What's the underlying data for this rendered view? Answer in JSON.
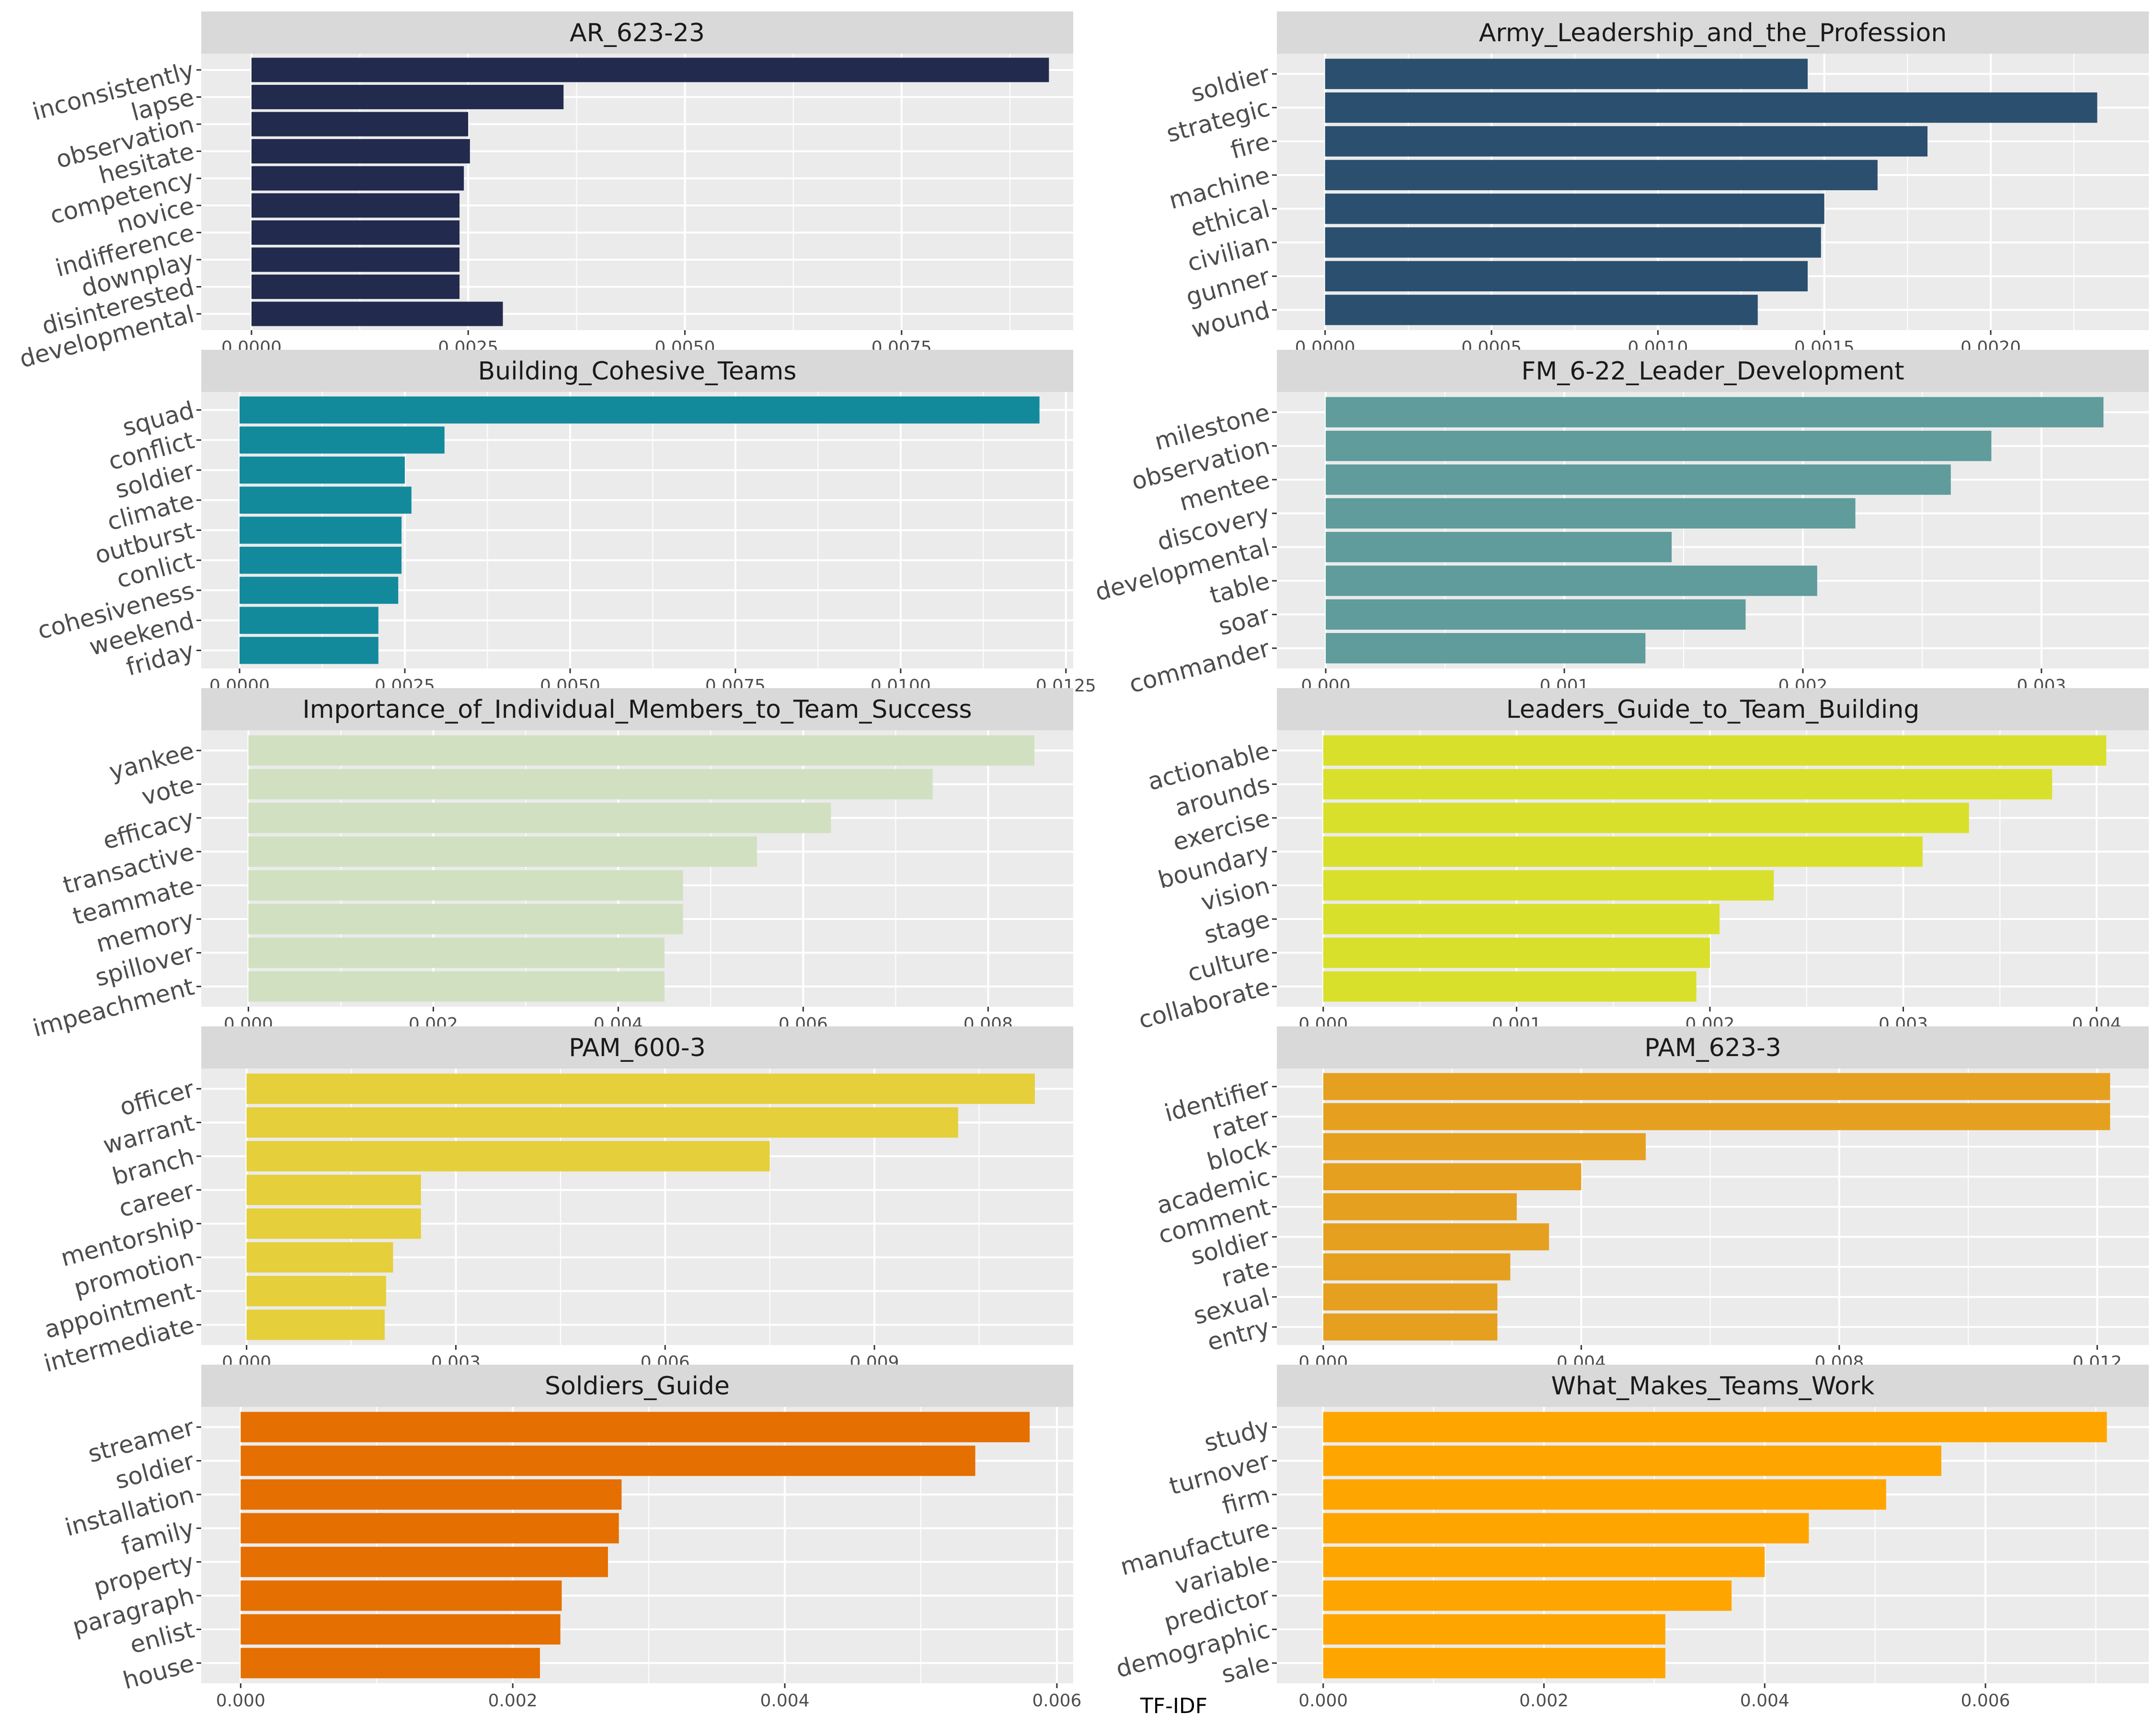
{
  "chart_data": {
    "type": "bar",
    "orientation": "horizontal",
    "layout": "facet-grid-5x2",
    "xlabel": "TF-IDF",
    "ylabel": "",
    "grid": true,
    "legend": "none",
    "panels": [
      {
        "title": "AR_623-23",
        "color": "#222b4e",
        "xlim": [
          -0.00058,
          0.00948
        ],
        "ticks": [
          0.0,
          0.0025,
          0.005,
          0.0075
        ],
        "tick_labels": [
          "0.0000",
          "0.0025",
          "0.0050",
          "0.0075"
        ],
        "categories": [
          "inconsistently",
          "lapse",
          "observation",
          "hesitate",
          "competency",
          "novice",
          "indifference",
          "downplay",
          "disinterested",
          "developmental"
        ],
        "values": [
          0.0092,
          0.0036,
          0.0025,
          0.00252,
          0.00245,
          0.0024,
          0.0024,
          0.0024,
          0.0024,
          0.0029
        ]
      },
      {
        "title": "Army_Leadership_and_the_Profession",
        "color": "#2b4f6f",
        "xlim": [
          -0.000145,
          0.002475
        ],
        "ticks": [
          0.0,
          0.0005,
          0.001,
          0.0015,
          0.002
        ],
        "tick_labels": [
          "0.0000",
          "0.0005",
          "0.0010",
          "0.0015",
          "0.0020"
        ],
        "categories": [
          "soldier",
          "strategic",
          "fire",
          "machine",
          "ethical",
          "civilian",
          "gunner",
          "wound"
        ],
        "values": [
          0.00145,
          0.00232,
          0.00181,
          0.00166,
          0.0015,
          0.00149,
          0.00145,
          0.0013
        ]
      },
      {
        "title": "Building_Cohesive_Teams",
        "color": "#138a9c",
        "xlim": [
          -0.00058,
          0.01261
        ],
        "ticks": [
          0.0,
          0.0025,
          0.005,
          0.0075,
          0.01,
          0.0125
        ],
        "tick_labels": [
          "0.0000",
          "0.0025",
          "0.0050",
          "0.0075",
          "0.0100",
          "0.0125"
        ],
        "categories": [
          "squad",
          "conflict",
          "soldier",
          "climate",
          "outburst",
          "conlict",
          "cohesiveness",
          "weekend",
          "friday"
        ],
        "values": [
          0.0121,
          0.0031,
          0.0025,
          0.0026,
          0.00245,
          0.00245,
          0.0024,
          0.0021,
          0.0021
        ]
      },
      {
        "title": "FM_6-22_Leader_Development",
        "color": "#5f9c9b",
        "xlim": [
          -0.000205,
          0.00345
        ],
        "ticks": [
          0.0,
          0.001,
          0.002,
          0.003
        ],
        "tick_labels": [
          "0.000",
          "0.001",
          "0.002",
          "0.003"
        ],
        "categories": [
          "milestone",
          "observation",
          "mentee",
          "discovery",
          "developmental",
          "table",
          "soar",
          "commander"
        ],
        "values": [
          0.00326,
          0.00279,
          0.00262,
          0.00222,
          0.00145,
          0.00206,
          0.00176,
          0.00134
        ]
      },
      {
        "title": "Importance_of_Individual_Members_to_Team_Success",
        "color": "#d1e0c1",
        "xlim": [
          -0.00051,
          0.00892
        ],
        "ticks": [
          0.0,
          0.002,
          0.004,
          0.006,
          0.008
        ],
        "tick_labels": [
          "0.000",
          "0.002",
          "0.004",
          "0.006",
          "0.008"
        ],
        "categories": [
          "yankee",
          "vote",
          "efficacy",
          "transactive",
          "teammate",
          "memory",
          "spillover",
          "impeachment"
        ],
        "values": [
          0.0085,
          0.0074,
          0.0063,
          0.0055,
          0.0047,
          0.0047,
          0.0045,
          0.0045
        ]
      },
      {
        "title": "Leaders_Guide_to_Team_Building",
        "color": "#d9e02c",
        "xlim": [
          -0.00024,
          0.00427
        ],
        "ticks": [
          0.0,
          0.001,
          0.002,
          0.003,
          0.004
        ],
        "tick_labels": [
          "0.000",
          "0.001",
          "0.002",
          "0.003",
          "0.004"
        ],
        "categories": [
          "actionable",
          "arounds",
          "exercise",
          "boundary",
          "vision",
          "stage",
          "culture",
          "collaborate"
        ],
        "values": [
          0.00405,
          0.00377,
          0.00334,
          0.0031,
          0.00233,
          0.00205,
          0.002,
          0.00193
        ]
      },
      {
        "title": "PAM_600-3",
        "color": "#e5cf3a",
        "xlim": [
          -0.00065,
          0.01185
        ],
        "ticks": [
          0.0,
          0.003,
          0.006,
          0.009
        ],
        "tick_labels": [
          "0.000",
          "0.003",
          "0.006",
          "0.009"
        ],
        "categories": [
          "officer",
          "warrant",
          "branch",
          "career",
          "mentorship",
          "promotion",
          "appointment",
          "intermediate"
        ],
        "values": [
          0.0113,
          0.0102,
          0.0075,
          0.0025,
          0.0025,
          0.0021,
          0.002,
          0.00198
        ]
      },
      {
        "title": "PAM_623-3",
        "color": "#e6a020",
        "xlim": [
          -0.00072,
          0.0128
        ],
        "ticks": [
          0.0,
          0.004,
          0.008,
          0.012
        ],
        "tick_labels": [
          "0.000",
          "0.004",
          "0.008",
          "0.012"
        ],
        "categories": [
          "identifier",
          "rater",
          "block",
          "academic",
          "comment",
          "soldier",
          "rate",
          "sexual",
          "entry"
        ],
        "values": [
          0.0122,
          0.0122,
          0.005,
          0.004,
          0.003,
          0.0035,
          0.0029,
          0.0027,
          0.0027
        ]
      },
      {
        "title": "Soldiers_Guide",
        "color": "#e56f00",
        "xlim": [
          -0.00029,
          0.00612
        ],
        "ticks": [
          0.0,
          0.002,
          0.004,
          0.006
        ],
        "tick_labels": [
          "0.000",
          "0.002",
          "0.004",
          "0.006"
        ],
        "categories": [
          "streamer",
          "soldier",
          "installation",
          "family",
          "property",
          "paragraph",
          "enlist",
          "house"
        ],
        "values": [
          0.0058,
          0.0054,
          0.0028,
          0.00278,
          0.0027,
          0.00236,
          0.00235,
          0.0022
        ]
      },
      {
        "title": "What_Makes_Teams_Work",
        "color": "#ffa500",
        "xlim": [
          -0.00042,
          0.00748
        ],
        "ticks": [
          0.0,
          0.002,
          0.004,
          0.006
        ],
        "tick_labels": [
          "0.000",
          "0.002",
          "0.004",
          "0.006"
        ],
        "categories": [
          "study",
          "turnover",
          "firm",
          "manufacture",
          "variable",
          "predictor",
          "demographic",
          "sale"
        ],
        "values": [
          0.0071,
          0.0056,
          0.0051,
          0.0044,
          0.004,
          0.0037,
          0.0031,
          0.0031
        ]
      }
    ]
  }
}
